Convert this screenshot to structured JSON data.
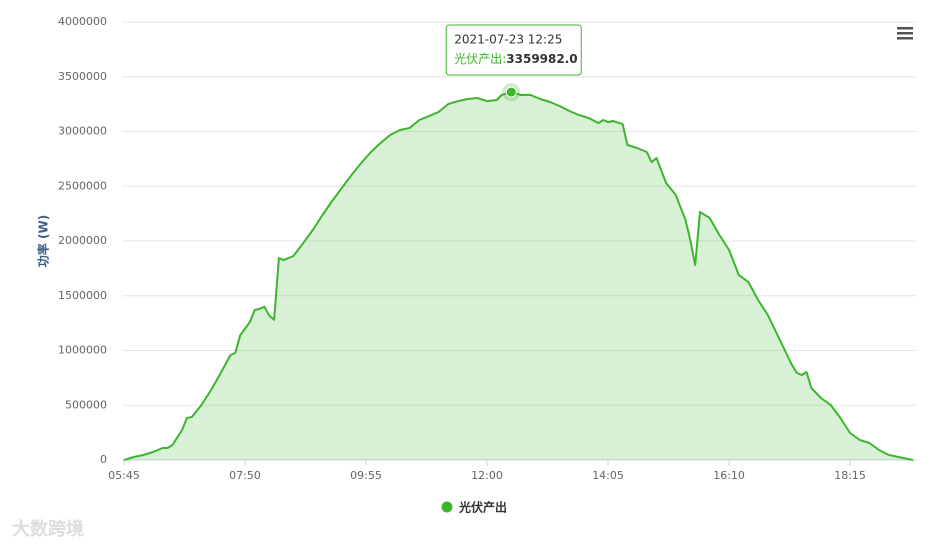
{
  "chart_data": {
    "type": "area",
    "y_label": "功率 (W)",
    "x": [
      "05:45",
      "05:55",
      "06:05",
      "06:15",
      "06:25",
      "06:30",
      "06:35",
      "06:45",
      "06:50",
      "06:55",
      "07:05",
      "07:15",
      "07:25",
      "07:35",
      "07:40",
      "07:45",
      "07:55",
      "08:00",
      "08:05",
      "08:10",
      "08:15",
      "08:20",
      "08:25",
      "08:30",
      "08:40",
      "08:50",
      "09:00",
      "09:10",
      "09:20",
      "09:30",
      "09:40",
      "09:50",
      "10:00",
      "10:10",
      "10:20",
      "10:30",
      "10:40",
      "10:50",
      "11:00",
      "11:10",
      "11:20",
      "11:30",
      "11:40",
      "11:50",
      "12:00",
      "12:10",
      "12:15",
      "12:25",
      "12:35",
      "12:45",
      "12:55",
      "13:05",
      "13:15",
      "13:25",
      "13:35",
      "13:45",
      "13:55",
      "14:00",
      "14:05",
      "14:10",
      "14:20",
      "14:25",
      "14:35",
      "14:45",
      "14:50",
      "14:55",
      "15:05",
      "15:15",
      "15:25",
      "15:30",
      "15:35",
      "15:40",
      "15:50",
      "16:00",
      "16:10",
      "16:20",
      "16:30",
      "16:40",
      "16:50",
      "17:00",
      "17:10",
      "17:15",
      "17:20",
      "17:25",
      "17:30",
      "17:35",
      "17:45",
      "17:55",
      "18:05",
      "18:15",
      "18:25",
      "18:35",
      "18:45",
      "18:55",
      "19:05",
      "19:15",
      "19:20"
    ],
    "series": [
      {
        "name": "光伏产出",
        "color": "#3db52d",
        "values": [
          0,
          27000,
          46000,
          73000,
          110000,
          110000,
          137000,
          274000,
          384000,
          393000,
          502000,
          639000,
          795000,
          959000,
          977000,
          1140000,
          1260000,
          1370000,
          1380000,
          1400000,
          1320000,
          1280000,
          1845000,
          1826000,
          1863000,
          1980000,
          2100000,
          2237000,
          2365000,
          2484000,
          2603000,
          2712000,
          2813000,
          2895000,
          2968000,
          3014000,
          3032000,
          3105000,
          3141000,
          3178000,
          3251000,
          3278000,
          3297000,
          3306000,
          3278000,
          3288000,
          3333000,
          3359982,
          3333000,
          3333000,
          3297000,
          3269000,
          3233000,
          3187000,
          3150000,
          3123000,
          3077000,
          3105000,
          3086000,
          3096000,
          3068000,
          2877000,
          2849000,
          2813000,
          2721000,
          2758000,
          2530000,
          2420000,
          2192000,
          2009000,
          1781000,
          2265000,
          2210000,
          2055000,
          1918000,
          1690000,
          1626000,
          1461000,
          1324000,
          1141000,
          959000,
          868000,
          795000,
          776000,
          804000,
          658000,
          566000,
          502000,
          384000,
          247000,
          183000,
          155000,
          91000,
          46000,
          27000,
          9000,
          0
        ]
      }
    ],
    "xlim": [
      "05:45",
      "19:20"
    ],
    "xticks": [
      "05:45",
      "07:50",
      "09:55",
      "12:00",
      "14:05",
      "16:10",
      "18:15"
    ],
    "ylim": [
      0,
      4000000
    ],
    "yticks": [
      0,
      500000,
      1000000,
      1500000,
      2000000,
      2500000,
      3000000,
      3500000,
      4000000
    ],
    "grid": true,
    "legend": "bottom",
    "tooltip": {
      "title": "2021-07-23 12:25",
      "label": "光伏产出:",
      "value_label": "3359982.0"
    },
    "watermark": "大数跨境"
  }
}
